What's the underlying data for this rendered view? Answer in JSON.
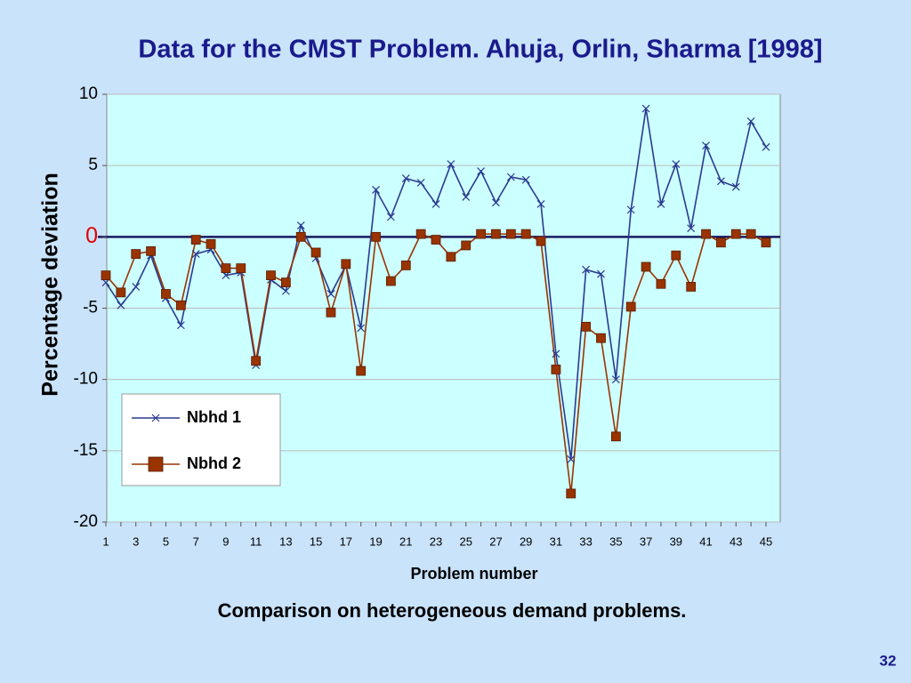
{
  "chart_data": {
    "type": "line",
    "title": "Data for the CMST Problem.   Ahuja, Orlin, Sharma [1998]",
    "ylabel": "Percentage deviation",
    "xlabel": "Problem number",
    "caption": "Comparison on heterogeneous demand problems.",
    "categories": [
      "1",
      null,
      "3",
      null,
      "5",
      null,
      "7",
      null,
      "9",
      null,
      "11",
      null,
      "13",
      null,
      "15",
      null,
      "17",
      null,
      "19",
      null,
      "21",
      null,
      "23",
      null,
      "25",
      null,
      "27",
      null,
      "29",
      null,
      "31",
      null,
      "33",
      null,
      "35",
      null,
      "37",
      null,
      "39",
      null,
      "41",
      null,
      "43",
      null,
      "45"
    ],
    "series": [
      {
        "name": "Nbhd 1",
        "color": "#2b3a8f",
        "marker": "x",
        "values": [
          -3.2,
          -4.8,
          -3.5,
          -1.3,
          -4.3,
          -6.2,
          -1.2,
          -0.9,
          -2.7,
          -2.5,
          -9.0,
          -3.0,
          -3.8,
          0.8,
          -1.5,
          -4.0,
          -2.0,
          -6.4,
          3.3,
          1.4,
          4.1,
          3.8,
          2.3,
          5.1,
          2.8,
          4.6,
          2.4,
          4.2,
          4.0,
          2.3,
          -8.2,
          -15.6,
          -2.3,
          -2.6,
          -10.0,
          1.9,
          9.0,
          2.3,
          5.1,
          0.6,
          6.4,
          3.9,
          3.5,
          8.1,
          6.3
        ]
      },
      {
        "name": "Nbhd 2",
        "color": "#993300",
        "marker": "square",
        "values": [
          -2.7,
          -3.9,
          -1.2,
          -1.0,
          -4.0,
          -4.8,
          -0.2,
          -0.5,
          -2.2,
          -2.2,
          -8.7,
          -2.7,
          -3.2,
          0,
          -1.1,
          -5.3,
          -1.9,
          -9.4,
          0,
          -3.1,
          -2.0,
          0.2,
          -0.2,
          -1.4,
          -0.6,
          0.2,
          0.2,
          0.2,
          0.2,
          -0.3,
          -9.3,
          -18,
          -6.3,
          -7.1,
          -14,
          -4.9,
          -2.1,
          -3.3,
          -1.3,
          -3.5,
          0.2,
          -0.4,
          0.2,
          0.2,
          -0.4
        ]
      }
    ],
    "ylim": [
      -20,
      10
    ],
    "yticks": [
      -20,
      -15,
      -10,
      -5,
      0,
      5,
      10
    ],
    "grid": true
  },
  "page_number": "32"
}
